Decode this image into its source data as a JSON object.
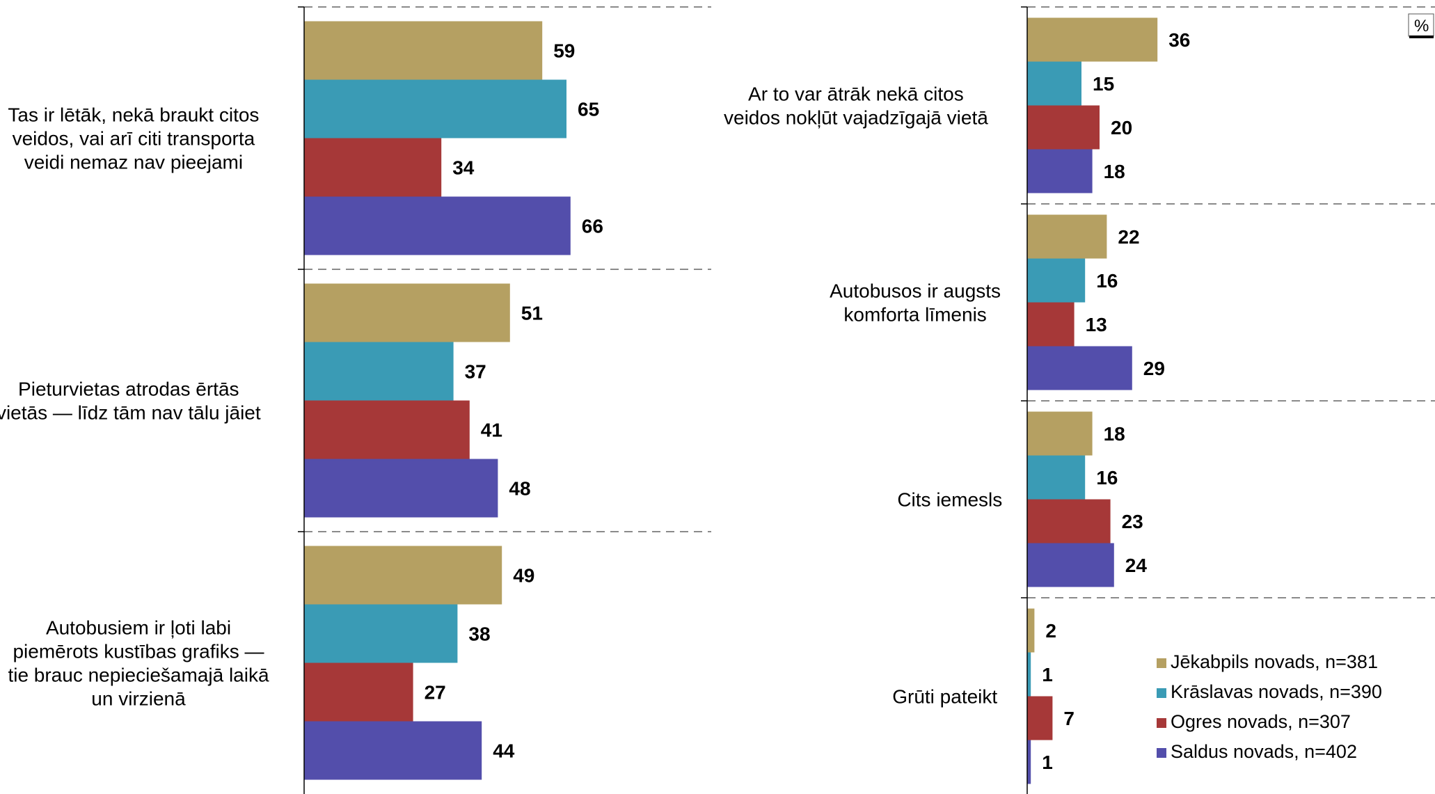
{
  "unit_label": "%",
  "chart_data": {
    "type": "bar",
    "orientation": "horizontal",
    "unit": "%",
    "legend_position": "bottom-right",
    "gridlines": "dashed category separators",
    "xlim": [
      0,
      100
    ],
    "series": [
      {
        "name": "Jēkabpils novads, n=381",
        "color": "#B5A062"
      },
      {
        "name": "Krāslavas novads, n=390",
        "color": "#3A9BB5"
      },
      {
        "name": "Ogres novads, n=307",
        "color": "#A63838"
      },
      {
        "name": "Saldus novads, n=402",
        "color": "#534EAB"
      }
    ],
    "panels": [
      {
        "groups": [
          {
            "label": [
              "Tas ir lētāk, nekā braukt citos",
              "veidos, vai arī citi transporta",
              "veidi nemaz nav pieejami"
            ],
            "values": [
              59,
              65,
              34,
              66
            ]
          },
          {
            "label": [
              "Pieturvietas atrodas ērtās",
              "vietās — līdz tām nav tālu jāiet"
            ],
            "values": [
              51,
              37,
              41,
              48
            ]
          },
          {
            "label": [
              "Autobusiem ir ļoti labi",
              "piemērots kustības grafiks —",
              "tie brauc nepieciešamajā laikā",
              "un virzienā"
            ],
            "values": [
              49,
              38,
              27,
              44
            ]
          }
        ]
      },
      {
        "groups": [
          {
            "label": [
              "Ar to var ātrāk nekā citos",
              "veidos nokļūt vajadzīgajā vietā"
            ],
            "values": [
              36,
              15,
              20,
              18
            ]
          },
          {
            "label": [
              "Autobusos ir augsts",
              "komforta līmenis"
            ],
            "values": [
              22,
              16,
              13,
              29
            ]
          },
          {
            "label": [
              "Cits iemesls"
            ],
            "values": [
              18,
              16,
              23,
              24
            ]
          },
          {
            "label": [
              "Grūti pateikt"
            ],
            "values": [
              2,
              1,
              7,
              1
            ]
          }
        ]
      }
    ]
  }
}
